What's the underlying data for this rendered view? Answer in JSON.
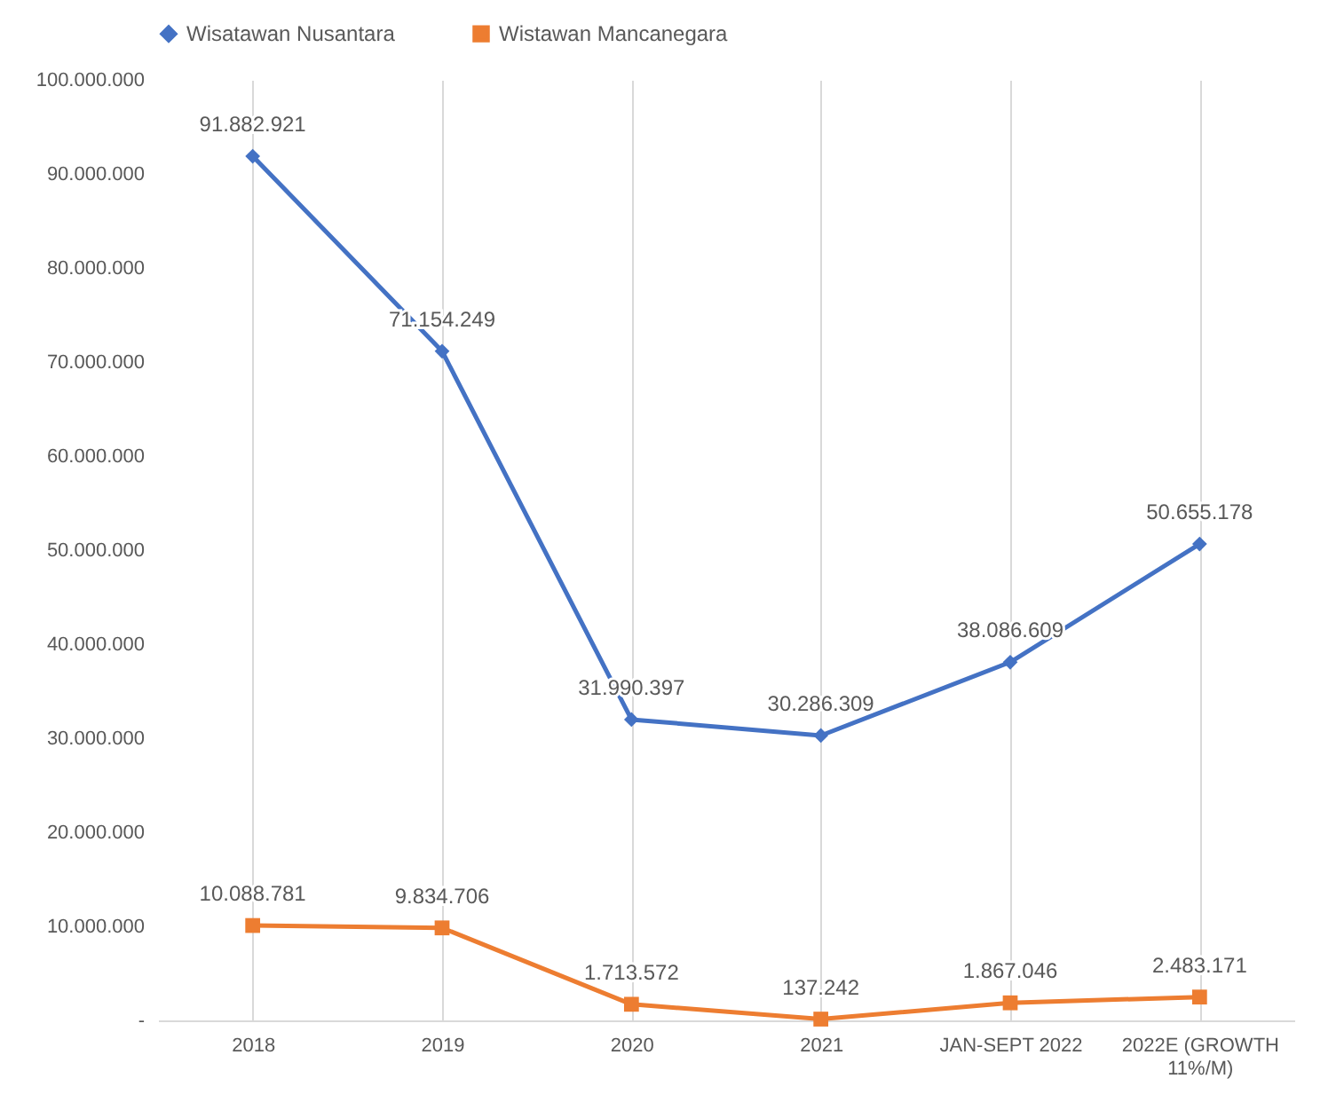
{
  "chart_data": {
    "type": "line",
    "categories": [
      "2018",
      "2019",
      "2020",
      "2021",
      "JAN-SEPT 2022",
      "2022E (GROWTH 11%/M)"
    ],
    "series": [
      {
        "name": "Wisatawan Nusantara",
        "color": "#4472c4",
        "marker": "diamond",
        "values": [
          91882921,
          71154249,
          31990397,
          30286309,
          38086609,
          50655178
        ],
        "value_labels": [
          "91.882.921",
          "71.154.249",
          "31.990.397",
          "30.286.309",
          "38.086.609",
          "50.655.178"
        ]
      },
      {
        "name": "Wistawan Mancanegara",
        "color": "#ed7d31",
        "marker": "square",
        "values": [
          10088781,
          9834706,
          1713572,
          137242,
          1867046,
          2483171
        ],
        "value_labels": [
          "10.088.781",
          "9.834.706",
          "1.713.572",
          "137.242",
          "1.867.046",
          "2.483.171"
        ]
      }
    ],
    "ylim": [
      0,
      100000000
    ],
    "yticks": [
      {
        "value": 0,
        "label": "-"
      },
      {
        "value": 10000000,
        "label": "10.000.000"
      },
      {
        "value": 20000000,
        "label": "20.000.000"
      },
      {
        "value": 30000000,
        "label": "30.000.000"
      },
      {
        "value": 40000000,
        "label": "40.000.000"
      },
      {
        "value": 50000000,
        "label": "50.000.000"
      },
      {
        "value": 60000000,
        "label": "60.000.000"
      },
      {
        "value": 70000000,
        "label": "70.000.000"
      },
      {
        "value": 80000000,
        "label": "80.000.000"
      },
      {
        "value": 90000000,
        "label": "90.000.000"
      },
      {
        "value": 100000000,
        "label": "100.000.000"
      }
    ],
    "grid": "x",
    "legend": "top",
    "line_style": "solid"
  }
}
